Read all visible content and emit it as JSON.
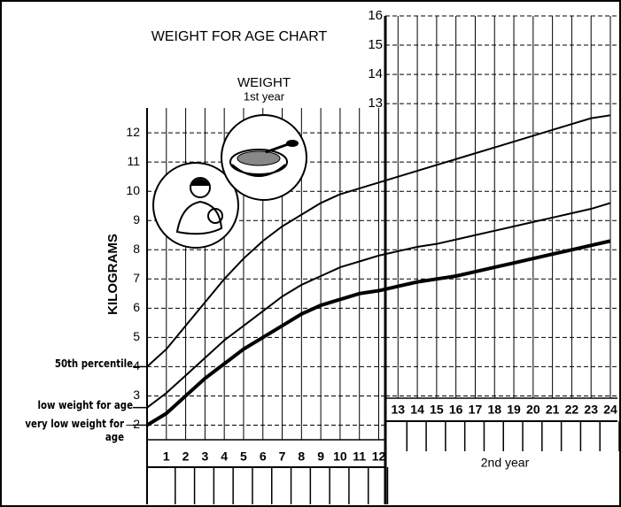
{
  "chart_data": {
    "type": "line",
    "title": "WEIGHT FOR AGE CHART",
    "subtitle": "WEIGHT",
    "first_year_label": "1st year",
    "second_year_label": "2nd year",
    "y_label": "KILOGRAMS",
    "x": [
      0,
      1,
      2,
      3,
      4,
      5,
      6,
      7,
      8,
      9,
      10,
      11,
      12,
      13,
      14,
      15,
      16,
      17,
      18,
      19,
      20,
      21,
      22,
      23,
      24
    ],
    "xlim": [
      0,
      24
    ],
    "xticks": [
      1,
      2,
      3,
      4,
      5,
      6,
      7,
      8,
      9,
      10,
      11,
      12,
      13,
      14,
      15,
      16,
      17,
      18,
      19,
      20,
      21,
      22,
      23,
      24
    ],
    "ylim": [
      1.5,
      16
    ],
    "yticks": [
      {
        "value": 2,
        "label": "–2"
      },
      3,
      4,
      5,
      6,
      7,
      8,
      9,
      10,
      11,
      12,
      13,
      14,
      15,
      16
    ],
    "grid": true,
    "series": [
      {
        "name": "50th percentile",
        "color": "#000000",
        "values": [
          4.0,
          4.6,
          5.4,
          6.2,
          7.0,
          7.7,
          8.3,
          8.8,
          9.2,
          9.6,
          9.9,
          10.1,
          10.3,
          10.5,
          10.7,
          10.9,
          11.1,
          11.3,
          11.5,
          11.7,
          11.9,
          12.1,
          12.3,
          12.5,
          12.6
        ]
      },
      {
        "name": "low weight for age",
        "color": "#000000",
        "values": [
          2.6,
          3.1,
          3.7,
          4.3,
          4.9,
          5.4,
          5.9,
          6.4,
          6.8,
          7.1,
          7.4,
          7.6,
          7.8,
          7.95,
          8.1,
          8.2,
          8.35,
          8.5,
          8.65,
          8.8,
          8.95,
          9.1,
          9.25,
          9.4,
          9.6
        ]
      },
      {
        "name": "very low weight for age",
        "color": "#000000",
        "values": [
          2.0,
          2.4,
          3.0,
          3.6,
          4.1,
          4.6,
          5.0,
          5.4,
          5.8,
          6.1,
          6.3,
          6.5,
          6.6,
          6.75,
          6.9,
          7.0,
          7.1,
          7.25,
          7.4,
          7.55,
          7.7,
          7.85,
          8.0,
          8.15,
          8.3
        ]
      }
    ]
  }
}
